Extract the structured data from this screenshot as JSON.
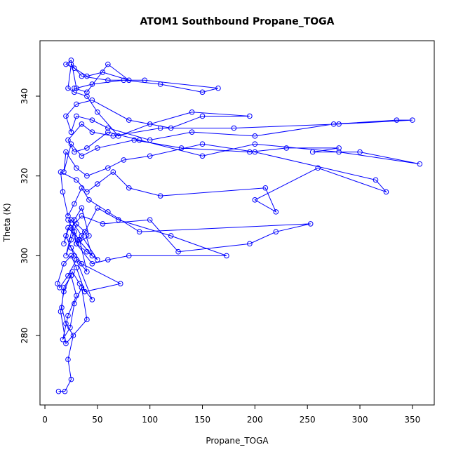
{
  "chart_data": {
    "type": "line",
    "markers": true,
    "title": "ATOM1 Southbound Propane_TOGA",
    "x_label": "Propane_TOGA",
    "y_label": "Theta (K)",
    "xlim": [
      -4.7,
      370.8
    ],
    "ylim": [
      262.6,
      353.9
    ],
    "xticks": [
      0,
      50,
      100,
      150,
      200,
      250,
      300,
      350
    ],
    "yticks": [
      280,
      300,
      320,
      340
    ],
    "grid": false,
    "x": [
      13,
      19,
      25,
      22,
      27,
      20,
      16,
      18,
      25,
      30,
      22,
      17,
      24,
      28,
      35,
      40,
      20,
      15,
      18,
      26,
      33,
      45,
      30,
      22,
      14,
      12,
      18,
      25,
      30,
      38,
      72,
      35,
      25,
      20,
      28,
      40,
      33,
      22,
      18,
      25,
      35,
      50,
      40,
      30,
      28,
      22,
      32,
      45,
      38,
      30,
      25,
      20,
      28,
      35,
      42,
      30,
      45,
      60,
      80,
      173,
      120,
      70,
      50,
      38,
      30,
      25,
      35,
      55,
      100,
      127,
      195,
      220,
      253,
      90,
      60,
      42,
      35,
      28,
      22,
      17,
      15,
      30,
      40,
      50,
      65,
      80,
      110,
      210,
      220,
      200,
      260,
      325,
      315,
      200,
      150,
      100,
      75,
      60,
      40,
      30,
      20,
      18,
      25,
      35,
      50,
      85,
      130,
      195,
      230,
      280,
      255,
      300,
      357,
      280,
      200,
      150,
      90,
      60,
      40,
      28,
      22,
      35,
      45,
      65,
      110,
      180,
      280,
      350,
      335,
      275,
      200,
      140,
      100,
      60,
      45,
      30,
      25,
      20,
      30,
      45,
      80,
      120,
      150,
      195,
      140,
      100,
      70,
      50,
      40,
      28,
      22,
      25,
      35,
      60,
      95,
      165,
      150,
      110,
      75,
      45,
      30,
      25,
      20,
      28,
      40,
      55,
      80,
      60,
      40,
      28
    ],
    "series": [
      {
        "color": "#0000ff",
        "values": [
          266,
          266,
          269,
          274,
          280,
          283,
          287,
          292,
          295,
          290,
          285,
          279,
          282,
          288,
          292,
          284,
          278,
          286,
          291,
          296,
          293,
          289,
          299,
          295,
          292,
          293,
          298,
          300,
          297,
          291,
          293,
          298,
          302,
          305,
          300,
          296,
          304,
          307,
          303,
          309,
          305,
          299,
          301,
          303,
          306,
          309,
          304,
          300,
          306,
          308,
          304,
          300,
          309,
          312,
          305,
          303,
          298,
          299,
          300,
          300,
          305,
          309,
          312,
          306,
          303,
          307,
          310,
          308,
          309,
          301,
          303,
          306,
          308,
          306,
          311,
          314,
          317,
          313,
          310,
          316,
          321,
          319,
          316,
          318,
          321,
          317,
          315,
          317,
          311,
          314,
          322,
          316,
          319,
          326,
          328,
          325,
          324,
          322,
          320,
          322,
          326,
          321,
          328,
          325,
          327,
          329,
          327,
          326,
          327,
          327,
          326,
          326,
          323,
          326,
          328,
          325,
          329,
          331,
          327,
          326,
          329,
          333,
          331,
          330,
          332,
          332,
          333,
          334,
          334,
          333,
          330,
          331,
          329,
          332,
          334,
          335,
          331,
          335,
          338,
          339,
          334,
          332,
          335,
          335,
          336,
          333,
          330,
          336,
          340,
          341,
          342,
          348,
          345,
          344,
          344,
          342,
          341,
          343,
          344,
          343,
          342,
          349,
          348,
          347,
          345,
          346,
          344,
          348,
          341,
          342
        ]
      }
    ]
  }
}
